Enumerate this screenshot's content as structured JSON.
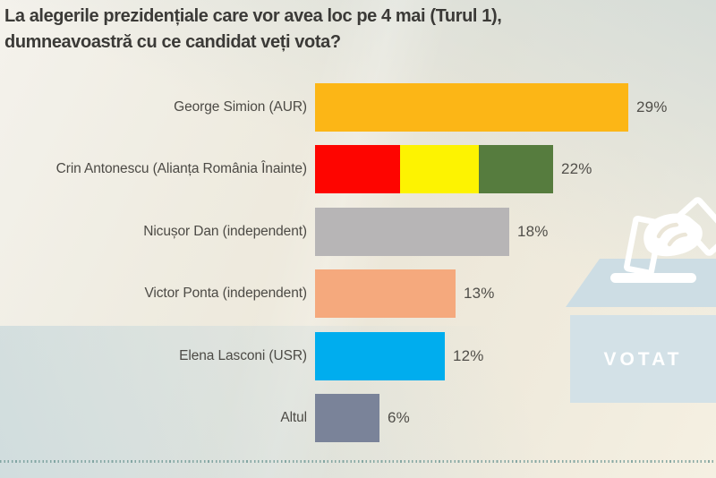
{
  "title": {
    "line1": "La alegerile prezidențiale care vor avea loc pe 4 mai (Turul 1),",
    "line2": "dumneavoastră cu ce candidat veți vota?"
  },
  "chart_data": {
    "type": "bar",
    "orientation": "horizontal",
    "title": "La alegerile prezidențiale care vor avea loc pe 4 mai (Turul 1), dumneavoastră cu ce candidat veți vota?",
    "categories": [
      "George Simion (AUR)",
      "Crin Antonescu (Alianța România Înainte)",
      "Nicușor Dan (independent)",
      "Victor Ponta (independent)",
      "Elena Lasconi (USR)",
      "Altul"
    ],
    "values": [
      29,
      22,
      18,
      13,
      12,
      6
    ],
    "value_labels": [
      "29%",
      "22%",
      "18%",
      "13%",
      "12%",
      "6%"
    ],
    "unit": "%",
    "xlim": [
      0,
      33
    ],
    "grid": false,
    "legend": false,
    "bars": [
      {
        "segments": [
          {
            "color": "#fcb616",
            "frac": 1
          }
        ]
      },
      {
        "segments": [
          {
            "color": "#fe0500",
            "frac": 0.357
          },
          {
            "color": "#fdf301",
            "frac": 0.331
          },
          {
            "color": "#567c3e",
            "frac": 0.312
          }
        ]
      },
      {
        "segments": [
          {
            "color": "#b7b5b6",
            "frac": 1
          }
        ]
      },
      {
        "segments": [
          {
            "color": "#f5a97d",
            "frac": 1
          }
        ]
      },
      {
        "segments": [
          {
            "color": "#00adee",
            "frac": 1
          }
        ]
      },
      {
        "segments": [
          {
            "color": "#7a8399",
            "frac": 1
          }
        ]
      }
    ]
  },
  "ballot_box": {
    "label": "VOTAT"
  },
  "colors": {
    "title_text": "#3b3a37",
    "label_text": "#4c4a45",
    "value_text": "#504e49",
    "box_lid": "#cddde4",
    "box_body": "#d3e1e7",
    "box_art": "#ffffff",
    "votat_text": "#ffffff",
    "divider": "#6f9895"
  }
}
